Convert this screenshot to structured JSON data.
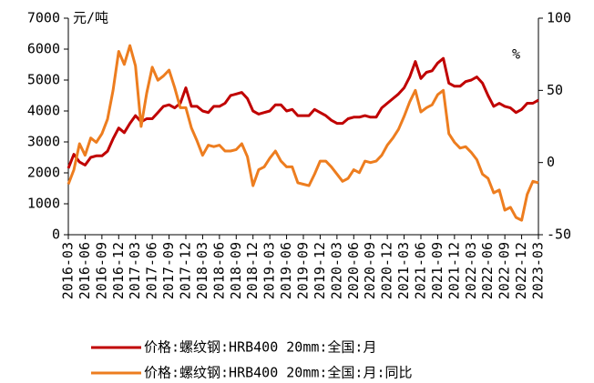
{
  "chart_data": {
    "type": "line",
    "y_label": "元/吨",
    "y2_label": "%",
    "categories": [
      "2016-03",
      null,
      null,
      "2016-06",
      null,
      null,
      "2016-09",
      null,
      null,
      "2016-12",
      null,
      null,
      "2017-03",
      null,
      null,
      "2017-06",
      null,
      null,
      "2017-09",
      null,
      null,
      "2017-12",
      null,
      null,
      "2018-03",
      null,
      null,
      "2018-06",
      null,
      null,
      "2018-09",
      null,
      null,
      "2018-12",
      null,
      null,
      "2019-03",
      null,
      null,
      "2019-06",
      null,
      null,
      "2019-09",
      null,
      null,
      "2019-12",
      null,
      null,
      "2020-03",
      null,
      null,
      "2020-06",
      null,
      null,
      "2020-09",
      null,
      null,
      "2020-12",
      null,
      null,
      "2021-03",
      null,
      null,
      "2021-06",
      null,
      null,
      "2021-09",
      null,
      null,
      "2021-12",
      null,
      null,
      "2022-03",
      null,
      null,
      "2022-06",
      null,
      null,
      "2022-09",
      null,
      null,
      "2022-12",
      null,
      null,
      "2023-03"
    ],
    "series": [
      {
        "name": "价格:螺纹钢:HRB400 20mm:全国:月",
        "color": "#c00000",
        "axis": "y",
        "values": [
          2150,
          2600,
          2350,
          2250,
          2500,
          2550,
          2550,
          2700,
          3100,
          3450,
          3300,
          3600,
          3850,
          3650,
          3750,
          3750,
          3950,
          4150,
          4200,
          4100,
          4250,
          4750,
          4150,
          4150,
          4000,
          3950,
          4150,
          4150,
          4250,
          4500,
          4550,
          4600,
          4400,
          4000,
          3900,
          3950,
          4000,
          4200,
          4200,
          4000,
          4050,
          3850,
          3850,
          3850,
          4050,
          3950,
          3850,
          3700,
          3600,
          3600,
          3750,
          3800,
          3800,
          3850,
          3800,
          3800,
          4100,
          4250,
          4400,
          4550,
          4750,
          5100,
          5600,
          5050,
          5250,
          5300,
          5550,
          5700,
          4900,
          4800,
          4800,
          4950,
          5000,
          5100,
          4900,
          4500,
          4150,
          4250,
          4150,
          4100,
          3950,
          4050,
          4250,
          4250,
          4350
        ]
      },
      {
        "name": "价格:螺纹钢:HRB400 20mm:全国:月:同比",
        "color": "#ed7d1f",
        "axis": "y2",
        "values": [
          -15,
          -5,
          13,
          5,
          17,
          14,
          20,
          30,
          50,
          77,
          68,
          81,
          67,
          25,
          48,
          66,
          57,
          60,
          64,
          52,
          38,
          38,
          24,
          15,
          5,
          12,
          11,
          12,
          8,
          8,
          9,
          13,
          4,
          -16,
          -5,
          -3,
          3,
          8,
          1,
          -3,
          -3,
          -14,
          -15,
          -16,
          -8,
          1,
          1,
          -3,
          -8,
          -13,
          -11,
          -5,
          -7,
          1,
          0,
          1,
          5,
          12,
          17,
          23,
          32,
          42,
          50,
          35,
          38,
          40,
          47,
          50,
          20,
          14,
          10,
          11,
          7,
          2,
          -8,
          -11,
          -21,
          -19,
          -33,
          -31,
          -38,
          -40,
          -22,
          -13,
          -14
        ]
      }
    ],
    "ylim": [
      0,
      7000
    ],
    "yticks": [
      0,
      1000,
      2000,
      3000,
      4000,
      5000,
      6000,
      7000
    ],
    "y2lim": [
      -50,
      100
    ],
    "y2ticks": [
      -50,
      0,
      50,
      100
    ],
    "legend": "bottom"
  }
}
